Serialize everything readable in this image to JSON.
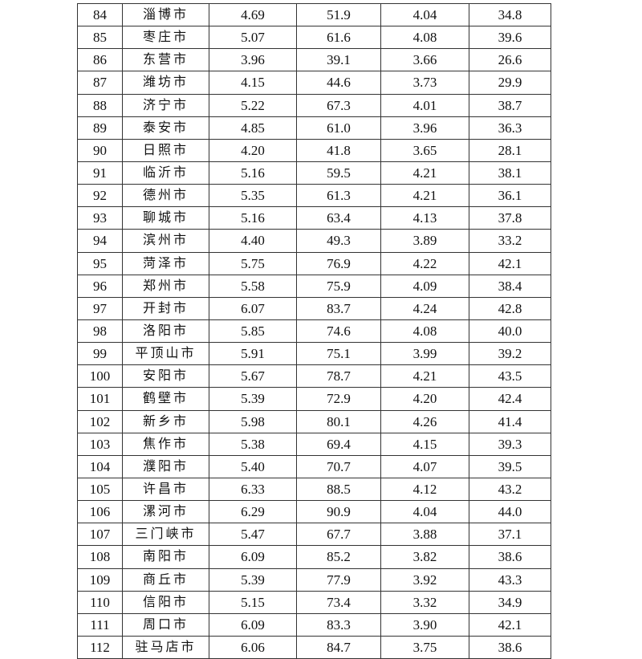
{
  "table": {
    "rows": [
      [
        "84",
        "淄博市",
        "4.69",
        "51.9",
        "4.04",
        "34.8"
      ],
      [
        "85",
        "枣庄市",
        "5.07",
        "61.6",
        "4.08",
        "39.6"
      ],
      [
        "86",
        "东营市",
        "3.96",
        "39.1",
        "3.66",
        "26.6"
      ],
      [
        "87",
        "潍坊市",
        "4.15",
        "44.6",
        "3.73",
        "29.9"
      ],
      [
        "88",
        "济宁市",
        "5.22",
        "67.3",
        "4.01",
        "38.7"
      ],
      [
        "89",
        "泰安市",
        "4.85",
        "61.0",
        "3.96",
        "36.3"
      ],
      [
        "90",
        "日照市",
        "4.20",
        "41.8",
        "3.65",
        "28.1"
      ],
      [
        "91",
        "临沂市",
        "5.16",
        "59.5",
        "4.21",
        "38.1"
      ],
      [
        "92",
        "德州市",
        "5.35",
        "61.3",
        "4.21",
        "36.1"
      ],
      [
        "93",
        "聊城市",
        "5.16",
        "63.4",
        "4.13",
        "37.8"
      ],
      [
        "94",
        "滨州市",
        "4.40",
        "49.3",
        "3.89",
        "33.2"
      ],
      [
        "95",
        "菏泽市",
        "5.75",
        "76.9",
        "4.22",
        "42.1"
      ],
      [
        "96",
        "郑州市",
        "5.58",
        "75.9",
        "4.09",
        "38.4"
      ],
      [
        "97",
        "开封市",
        "6.07",
        "83.7",
        "4.24",
        "42.8"
      ],
      [
        "98",
        "洛阳市",
        "5.85",
        "74.6",
        "4.08",
        "40.0"
      ],
      [
        "99",
        "平顶山市",
        "5.91",
        "75.1",
        "3.99",
        "39.2"
      ],
      [
        "100",
        "安阳市",
        "5.67",
        "78.7",
        "4.21",
        "43.5"
      ],
      [
        "101",
        "鹤壁市",
        "5.39",
        "72.9",
        "4.20",
        "42.4"
      ],
      [
        "102",
        "新乡市",
        "5.98",
        "80.1",
        "4.26",
        "41.4"
      ],
      [
        "103",
        "焦作市",
        "5.38",
        "69.4",
        "4.15",
        "39.3"
      ],
      [
        "104",
        "濮阳市",
        "5.40",
        "70.7",
        "4.07",
        "39.5"
      ],
      [
        "105",
        "许昌市",
        "6.33",
        "88.5",
        "4.12",
        "43.2"
      ],
      [
        "106",
        "漯河市",
        "6.29",
        "90.9",
        "4.04",
        "44.0"
      ],
      [
        "107",
        "三门峡市",
        "5.47",
        "67.7",
        "3.88",
        "37.1"
      ],
      [
        "108",
        "南阳市",
        "6.09",
        "85.2",
        "3.82",
        "38.6"
      ],
      [
        "109",
        "商丘市",
        "5.39",
        "77.9",
        "3.92",
        "43.3"
      ],
      [
        "110",
        "信阳市",
        "5.15",
        "73.4",
        "3.32",
        "34.9"
      ],
      [
        "111",
        "周口市",
        "6.09",
        "83.3",
        "3.90",
        "42.1"
      ],
      [
        "112",
        "驻马店市",
        "6.06",
        "84.7",
        "3.75",
        "38.6"
      ]
    ]
  }
}
